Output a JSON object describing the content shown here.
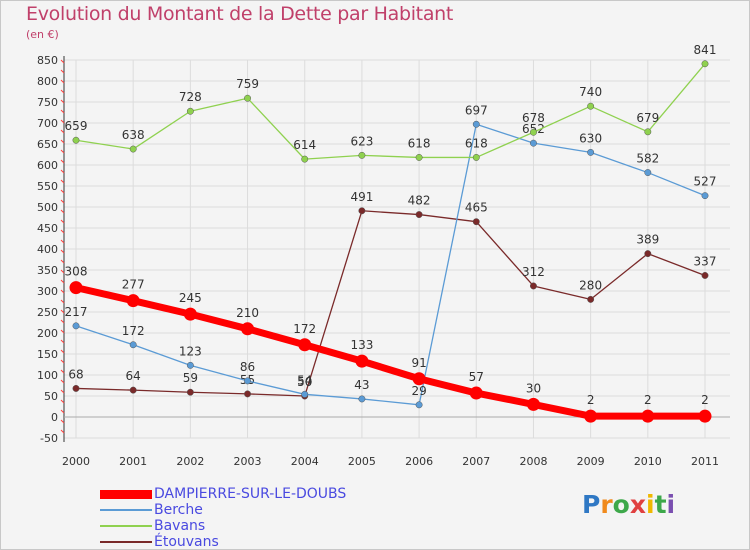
{
  "chart_data": {
    "type": "line",
    "title": "Evolution du Montant de la Dette par Habitant",
    "unit_label": "(en €)",
    "x": [
      "2000",
      "2001",
      "2002",
      "2003",
      "2004",
      "2005",
      "2006",
      "2007",
      "2008",
      "2009",
      "2010",
      "2011"
    ],
    "ylim": [
      -50,
      850
    ],
    "yticks": [
      -50,
      0,
      50,
      100,
      150,
      200,
      250,
      300,
      350,
      400,
      450,
      500,
      550,
      600,
      650,
      700,
      750,
      800,
      850
    ],
    "grid": true,
    "legend_position": "bottom-left",
    "series": [
      {
        "name": "DAMPIERRE-SUR-LE-DOUBS",
        "color": "#ff0000",
        "values": [
          308,
          277,
          245,
          210,
          172,
          133,
          91,
          57,
          30,
          2,
          2,
          2
        ],
        "labels": [
          "308",
          "277",
          "245",
          "210",
          "172",
          "133",
          "91",
          "57",
          "30",
          "2",
          "2",
          "2"
        ]
      },
      {
        "name": "Berche",
        "color": "#5b9bd5",
        "values": [
          217,
          172,
          123,
          86,
          54,
          43,
          29,
          697,
          652,
          630,
          582,
          527
        ],
        "labels": [
          "217",
          "172",
          "123",
          "86",
          "54",
          "43",
          "29",
          "697",
          "652",
          "630",
          "582",
          "527"
        ]
      },
      {
        "name": "Bavans",
        "color": "#8fd14f",
        "values": [
          659,
          638,
          728,
          759,
          614,
          623,
          618,
          618,
          678,
          740,
          679,
          841
        ],
        "labels": [
          "659",
          "638",
          "728",
          "759",
          "614",
          "623",
          "618",
          "618",
          "678",
          "740",
          "679",
          "841"
        ]
      },
      {
        "name": "Étouvans",
        "color": "#7a2a2a",
        "values": [
          68,
          64,
          59,
          55,
          50,
          491,
          482,
          465,
          312,
          280,
          389,
          337
        ],
        "labels": [
          "68",
          "64",
          "59",
          "55",
          "50",
          "491",
          "482",
          "465",
          "312",
          "280",
          "389",
          "337"
        ]
      }
    ]
  },
  "logo": {
    "letters": [
      "P",
      "r",
      "o",
      "x",
      "i",
      "t",
      "i"
    ],
    "colors": [
      "#2f78c4",
      "#f08a1c",
      "#3da84a",
      "#e04040",
      "#f0b800",
      "#3da84a",
      "#7a4fb0"
    ]
  }
}
